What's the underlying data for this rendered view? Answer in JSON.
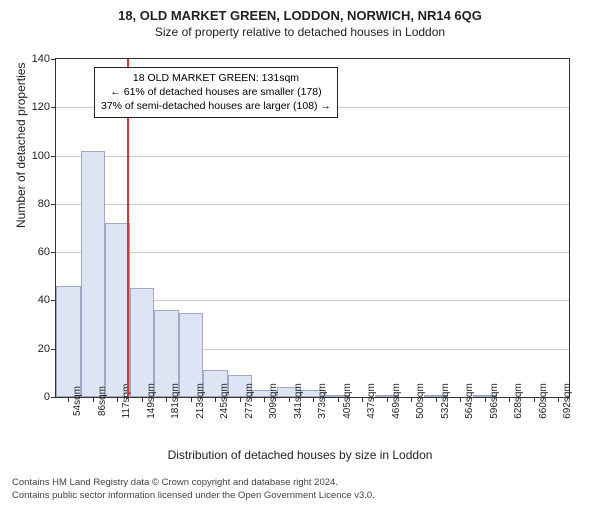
{
  "title": "18, OLD MARKET GREEN, LODDON, NORWICH, NR14 6QG",
  "subtitle": "Size of property relative to detached houses in Loddon",
  "ylabel": "Number of detached properties",
  "xlabel": "Distribution of detached houses by size in Loddon",
  "annotation": {
    "line1": "18 OLD MARKET GREEN: 131sqm",
    "line2": "← 61% of detached houses are smaller (178)",
    "line3": "37% of semi-detached houses are larger (108) →"
  },
  "footer_line1": "Contains HM Land Registry data © Crown copyright and database right 2024.",
  "footer_line2": "Contains public sector information licensed under the Open Government Licence v3.0.",
  "chart": {
    "type": "histogram",
    "ylim": [
      0,
      140
    ],
    "yticks": [
      0,
      20,
      40,
      60,
      80,
      100,
      120,
      140
    ],
    "xticks": [
      "54sqm",
      "86sqm",
      "117sqm",
      "149sqm",
      "181sqm",
      "213sqm",
      "245sqm",
      "277sqm",
      "309sqm",
      "341sqm",
      "373sqm",
      "405sqm",
      "437sqm",
      "469sqm",
      "500sqm",
      "532sqm",
      "564sqm",
      "596sqm",
      "628sqm",
      "660sqm",
      "692sqm"
    ],
    "x_min": 38,
    "x_max": 708,
    "bin_width": 32,
    "values": [
      46,
      102,
      72,
      45,
      36,
      35,
      11,
      9,
      3,
      4,
      3,
      1,
      0,
      1,
      0,
      1,
      0,
      1,
      0,
      0,
      0
    ],
    "bar_fill": "#dde5f4",
    "bar_border": "#9fa8c8",
    "grid_color": "#cccccc",
    "background": "#ffffff",
    "reference_value": 131,
    "reference_color": "#d33",
    "title_fontsize": 13,
    "label_fontsize": 12,
    "tick_fontsize": 10
  }
}
